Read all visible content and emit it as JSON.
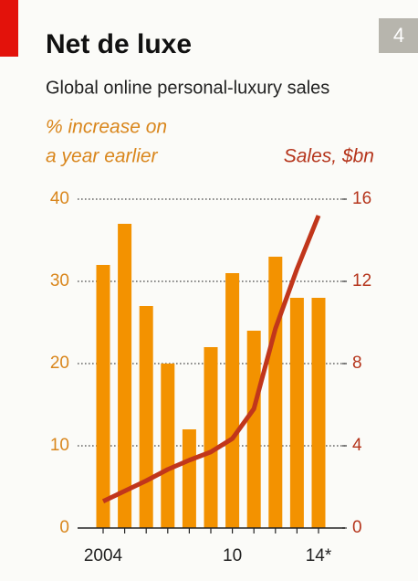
{
  "page_number": "4",
  "chart_data": {
    "type": "bar",
    "title": "Net de luxe",
    "subtitle": "Global online personal-luxury sales",
    "y_label": [
      "% increase on",
      "a year earlier"
    ],
    "y2_label": "Sales, $bn",
    "categories": [
      "2004",
      null,
      null,
      null,
      null,
      null,
      "10",
      null,
      null,
      null,
      "14*"
    ],
    "series": [
      {
        "name": "% increase on a year earlier",
        "type": "bar",
        "axis": "y",
        "color": "#f39200",
        "values": [
          32,
          37,
          27,
          20,
          12,
          22,
          31,
          24,
          33,
          28,
          28
        ]
      },
      {
        "name": "Sales, $bn",
        "type": "line",
        "axis": "y2",
        "color": "#c1361b",
        "values": [
          1.3,
          1.8,
          2.3,
          2.85,
          3.3,
          3.7,
          4.35,
          5.8,
          9.7,
          12.6,
          15.2
        ]
      }
    ],
    "ylim": [
      0,
      40
    ],
    "yticks": [
      0,
      10,
      20,
      30,
      40
    ],
    "y2lim": [
      0,
      16
    ],
    "y2ticks": [
      0,
      4,
      8,
      12,
      16
    ],
    "grid": true
  }
}
